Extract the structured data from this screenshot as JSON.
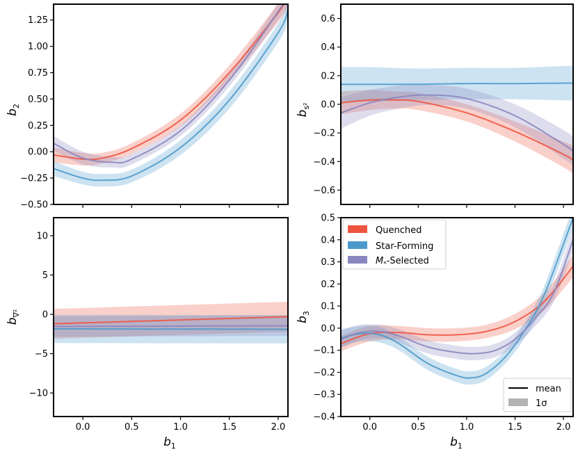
{
  "colors": {
    "Quenched": "#EE5540",
    "Star-Forming": "#4C9ACB",
    "Mstar-Selected": "#8A86BF"
  },
  "chart_data": [
    {
      "type": "line",
      "panel": "top-left",
      "title": "",
      "xlabel": "b1",
      "ylabel": "b2",
      "xlim": [
        -0.3,
        2.1
      ],
      "ylim": [
        -0.5,
        1.4
      ],
      "xticks": [
        0.0,
        0.5,
        1.0,
        1.5,
        2.0
      ],
      "xtick_labels_shown": false,
      "yticks": [
        -0.5,
        -0.25,
        0.0,
        0.25,
        0.5,
        0.75,
        1.0,
        1.25
      ],
      "ytick_labels": [
        "−0.50",
        "−0.25",
        "0.00",
        "0.25",
        "0.50",
        "0.75",
        "1.00",
        "1.25"
      ],
      "series": [
        {
          "name": "Quenched",
          "x": [
            -0.3,
            0.0,
            0.2,
            0.5,
            1.0,
            1.5,
            2.0,
            2.1
          ],
          "mean": [
            -0.03,
            -0.07,
            -0.06,
            0.03,
            0.3,
            0.75,
            1.32,
            1.48
          ],
          "sigma": [
            0.07,
            0.06,
            0.05,
            0.05,
            0.06,
            0.07,
            0.09,
            0.1
          ]
        },
        {
          "name": "Star-Forming",
          "x": [
            -0.3,
            0.0,
            0.2,
            0.5,
            1.0,
            1.5,
            2.0,
            2.1
          ],
          "mean": [
            -0.16,
            -0.25,
            -0.27,
            -0.23,
            0.04,
            0.49,
            1.13,
            1.35
          ],
          "sigma": [
            0.07,
            0.06,
            0.06,
            0.06,
            0.07,
            0.08,
            0.09,
            0.1
          ]
        },
        {
          "name": "Mstar-Selected",
          "x": [
            -0.3,
            0.0,
            0.3,
            0.5,
            1.0,
            1.5,
            2.0,
            2.1
          ],
          "mean": [
            0.08,
            -0.06,
            -0.1,
            -0.07,
            0.2,
            0.68,
            1.33,
            1.48
          ],
          "sigma": [
            0.07,
            0.06,
            0.05,
            0.05,
            0.05,
            0.06,
            0.08,
            0.09
          ]
        }
      ]
    },
    {
      "type": "line",
      "panel": "top-right",
      "title": "",
      "xlabel": "b1",
      "ylabel": "b_{s^2}",
      "xlim": [
        -0.3,
        2.1
      ],
      "ylim": [
        -0.7,
        0.7
      ],
      "xticks": [
        0.0,
        0.5,
        1.0,
        1.5,
        2.0
      ],
      "xtick_labels_shown": false,
      "yticks": [
        -0.6,
        -0.4,
        -0.2,
        0.0,
        0.2,
        0.4,
        0.6
      ],
      "ytick_labels": [
        "−0.6",
        "−0.4",
        "−0.2",
        "0.0",
        "0.2",
        "0.4",
        "0.6"
      ],
      "series": [
        {
          "name": "Quenched",
          "x": [
            -0.3,
            0.0,
            0.25,
            0.5,
            1.0,
            1.5,
            2.0,
            2.1
          ],
          "mean": [
            0.01,
            0.03,
            0.03,
            0.02,
            -0.06,
            -0.19,
            -0.35,
            -0.39
          ],
          "sigma": [
            0.08,
            0.07,
            0.06,
            0.06,
            0.06,
            0.07,
            0.09,
            0.1
          ]
        },
        {
          "name": "Star-Forming",
          "x": [
            -0.3,
            0.0,
            0.5,
            1.0,
            1.5,
            2.0,
            2.1
          ],
          "mean": [
            0.14,
            0.14,
            0.14,
            0.145,
            0.145,
            0.148,
            0.148
          ],
          "sigma": [
            0.12,
            0.12,
            0.11,
            0.11,
            0.11,
            0.12,
            0.12
          ]
        },
        {
          "name": "Mstar-Selected",
          "x": [
            -0.3,
            0.0,
            0.3,
            0.6,
            1.0,
            1.5,
            2.0,
            2.1
          ],
          "mean": [
            -0.06,
            0.01,
            0.05,
            0.065,
            0.04,
            -0.08,
            -0.28,
            -0.33
          ],
          "sigma": [
            0.11,
            0.09,
            0.08,
            0.07,
            0.07,
            0.08,
            0.1,
            0.1
          ]
        }
      ]
    },
    {
      "type": "line",
      "panel": "bottom-left",
      "title": "",
      "xlabel": "b1",
      "ylabel": "b_{∇²}",
      "xlim": [
        -0.3,
        2.1
      ],
      "ylim": [
        -13,
        12.3
      ],
      "xticks": [
        0.0,
        0.5,
        1.0,
        1.5,
        2.0
      ],
      "xtick_labels": [
        "0.0",
        "0.5",
        "1.0",
        "1.5",
        "2.0"
      ],
      "yticks": [
        -10,
        -5,
        0,
        5,
        10
      ],
      "ytick_labels": [
        "−10",
        "−5",
        "0",
        "5",
        "10"
      ],
      "series": [
        {
          "name": "Quenched",
          "x": [
            -0.3,
            2.1
          ],
          "mean": [
            -1.2,
            -0.3
          ],
          "sigma": [
            1.9,
            1.9
          ]
        },
        {
          "name": "Star-Forming",
          "x": [
            -0.3,
            2.1
          ],
          "mean": [
            -1.85,
            -1.9
          ],
          "sigma": [
            1.8,
            1.8
          ]
        },
        {
          "name": "Mstar-Selected",
          "x": [
            -0.3,
            2.1
          ],
          "mean": [
            -1.55,
            -1.45
          ],
          "sigma": [
            1.3,
            1.3
          ]
        }
      ]
    },
    {
      "type": "line",
      "panel": "bottom-right",
      "title": "",
      "xlabel": "b1",
      "ylabel": "b3",
      "xlim": [
        -0.3,
        2.1
      ],
      "ylim": [
        -0.4,
        0.5
      ],
      "xticks": [
        0.0,
        0.5,
        1.0,
        1.5,
        2.0
      ],
      "xtick_labels": [
        "0.0",
        "0.5",
        "1.0",
        "1.5",
        "2.0"
      ],
      "yticks": [
        -0.4,
        -0.3,
        -0.2,
        -0.1,
        0.0,
        0.1,
        0.2,
        0.3,
        0.4,
        0.5
      ],
      "ytick_labels": [
        "−0.4",
        "−0.3",
        "−0.2",
        "−0.1",
        "0.0",
        "0.1",
        "0.2",
        "0.3",
        "0.4",
        "0.5"
      ],
      "series": [
        {
          "name": "Quenched",
          "x": [
            -0.3,
            0.0,
            0.3,
            0.6,
            0.9,
            1.2,
            1.5,
            1.8,
            2.1
          ],
          "mean": [
            -0.07,
            -0.025,
            -0.02,
            -0.03,
            -0.03,
            -0.015,
            0.03,
            0.12,
            0.28
          ],
          "sigma": [
            0.035,
            0.035,
            0.03,
            0.03,
            0.03,
            0.03,
            0.035,
            0.04,
            0.05
          ]
        },
        {
          "name": "Star-Forming",
          "x": [
            -0.3,
            -0.1,
            0.1,
            0.3,
            0.6,
            0.9,
            1.05,
            1.2,
            1.4,
            1.6,
            1.8,
            2.1
          ],
          "mean": [
            -0.045,
            -0.025,
            -0.03,
            -0.07,
            -0.16,
            -0.215,
            -0.225,
            -0.205,
            -0.13,
            -0.01,
            0.15,
            0.5
          ],
          "sigma": [
            0.04,
            0.035,
            0.035,
            0.03,
            0.03,
            0.03,
            0.03,
            0.03,
            0.03,
            0.035,
            0.04,
            0.05
          ]
        },
        {
          "name": "Mstar-Selected",
          "x": [
            -0.3,
            -0.1,
            0.1,
            0.3,
            0.6,
            0.9,
            1.1,
            1.3,
            1.5,
            1.7,
            1.9,
            2.1
          ],
          "mean": [
            -0.05,
            -0.02,
            -0.015,
            -0.035,
            -0.085,
            -0.11,
            -0.115,
            -0.1,
            -0.05,
            0.04,
            0.16,
            0.4
          ],
          "sigma": [
            0.04,
            0.035,
            0.03,
            0.03,
            0.03,
            0.03,
            0.03,
            0.03,
            0.03,
            0.035,
            0.04,
            0.05
          ]
        }
      ],
      "legend": {
        "placement": "top-left",
        "entries": [
          "Quenched",
          "Star-Forming",
          "M*-Selected"
        ]
      },
      "legend2": {
        "placement": "bottom-right",
        "entries": [
          "mean",
          "1σ"
        ]
      }
    }
  ],
  "labels": {
    "b1": "b",
    "b1_sub": "1",
    "b2": "b",
    "b2_sub": "2",
    "bs2": "b",
    "bs2_sub": "s²",
    "bnabla": "b",
    "bnabla_sub": "∇²",
    "b3": "b",
    "b3_sub": "3"
  },
  "legend": {
    "quenched": "Quenched",
    "starforming": "Star-Forming",
    "mstar_main": "M",
    "mstar_sub": "*",
    "mstar_rest": "-Selected",
    "mean": "mean",
    "sigma": "1σ"
  }
}
